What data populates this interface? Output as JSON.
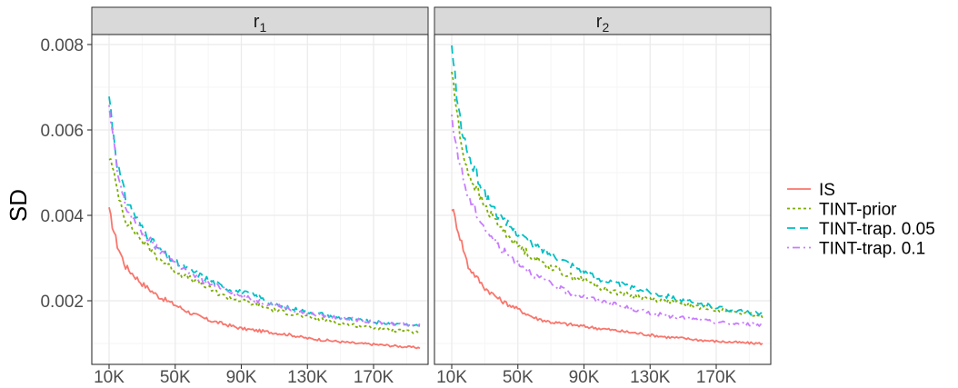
{
  "chart_data": {
    "type": "line",
    "ylabel": "SD",
    "xlabel": "",
    "x_ticks": [
      10000,
      50000,
      90000,
      130000,
      170000
    ],
    "x_tick_labels": [
      "10K",
      "50K",
      "90K",
      "130K",
      "170K"
    ],
    "y_ticks": [
      0.002,
      0.004,
      0.006,
      0.008
    ],
    "y_tick_labels": [
      "0.002",
      "0.004",
      "0.006",
      "0.008"
    ],
    "xlim": [
      10000,
      200000
    ],
    "ylim": [
      0.0009,
      0.0079
    ],
    "grid": true,
    "legend_position": "right",
    "panels": [
      {
        "strip": "r",
        "strip_sub": "1",
        "series": [
          {
            "name": "IS",
            "color": "#F8766D",
            "dash": "solid",
            "points": [
              [
                10000,
                0.0041
              ],
              [
                15000,
                0.0033
              ],
              [
                20000,
                0.0028
              ],
              [
                30000,
                0.0024
              ],
              [
                40000,
                0.0021
              ],
              [
                50000,
                0.0019
              ],
              [
                60000,
                0.0017
              ],
              [
                70000,
                0.00155
              ],
              [
                80000,
                0.00145
              ],
              [
                90000,
                0.00135
              ],
              [
                100000,
                0.0013
              ],
              [
                110000,
                0.00125
              ],
              [
                120000,
                0.0012
              ],
              [
                130000,
                0.00112
              ],
              [
                140000,
                0.00108
              ],
              [
                150000,
                0.00104
              ],
              [
                160000,
                0.001
              ],
              [
                170000,
                0.00098
              ],
              [
                180000,
                0.00095
              ],
              [
                190000,
                0.00092
              ],
              [
                198000,
                0.0009
              ]
            ]
          },
          {
            "name": "TINT-prior",
            "color": "#7CAE00",
            "dash": "short",
            "points": [
              [
                10000,
                0.0054
              ],
              [
                15000,
                0.0046
              ],
              [
                20000,
                0.0039
              ],
              [
                30000,
                0.0034
              ],
              [
                40000,
                0.003
              ],
              [
                50000,
                0.0027
              ],
              [
                60000,
                0.0025
              ],
              [
                70000,
                0.0023
              ],
              [
                80000,
                0.0021
              ],
              [
                90000,
                0.002
              ],
              [
                100000,
                0.0019
              ],
              [
                110000,
                0.00178
              ],
              [
                120000,
                0.0017
              ],
              [
                130000,
                0.00162
              ],
              [
                140000,
                0.00155
              ],
              [
                150000,
                0.00148
              ],
              [
                160000,
                0.00142
              ],
              [
                170000,
                0.00137
              ],
              [
                180000,
                0.00132
              ],
              [
                190000,
                0.00128
              ],
              [
                198000,
                0.00125
              ]
            ]
          },
          {
            "name": "TINT-trap. 0.05",
            "color": "#00BFC4",
            "dash": "long",
            "points": [
              [
                10000,
                0.0068
              ],
              [
                15000,
                0.0052
              ],
              [
                20000,
                0.0044
              ],
              [
                30000,
                0.0037
              ],
              [
                40000,
                0.0032
              ],
              [
                50000,
                0.0029
              ],
              [
                60000,
                0.0027
              ],
              [
                70000,
                0.0025
              ],
              [
                80000,
                0.0023
              ],
              [
                90000,
                0.0022
              ],
              [
                100000,
                0.0021
              ],
              [
                110000,
                0.0019
              ],
              [
                120000,
                0.00182
              ],
              [
                130000,
                0.00175
              ],
              [
                140000,
                0.00168
              ],
              [
                150000,
                0.0016
              ],
              [
                160000,
                0.00155
              ],
              [
                170000,
                0.0015
              ],
              [
                180000,
                0.00147
              ],
              [
                190000,
                0.00145
              ],
              [
                198000,
                0.00142
              ]
            ]
          },
          {
            "name": "TINT-trap. 0.1",
            "color": "#C77CFF",
            "dash": "dashdot",
            "points": [
              [
                10000,
                0.0065
              ],
              [
                15000,
                0.005
              ],
              [
                20000,
                0.0042
              ],
              [
                30000,
                0.0036
              ],
              [
                40000,
                0.0032
              ],
              [
                50000,
                0.0029
              ],
              [
                60000,
                0.0026
              ],
              [
                70000,
                0.0024
              ],
              [
                80000,
                0.0023
              ],
              [
                90000,
                0.0021
              ],
              [
                100000,
                0.002
              ],
              [
                110000,
                0.0019
              ],
              [
                120000,
                0.0018
              ],
              [
                130000,
                0.0017
              ],
              [
                140000,
                0.00165
              ],
              [
                150000,
                0.0016
              ],
              [
                160000,
                0.00155
              ],
              [
                170000,
                0.0015
              ],
              [
                180000,
                0.00147
              ],
              [
                190000,
                0.00145
              ],
              [
                198000,
                0.00143
              ]
            ]
          }
        ]
      },
      {
        "strip": "r",
        "strip_sub": "2",
        "series": [
          {
            "name": "IS",
            "color": "#F8766D",
            "dash": "solid",
            "points": [
              [
                10000,
                0.0042
              ],
              [
                15000,
                0.0035
              ],
              [
                20000,
                0.0028
              ],
              [
                30000,
                0.0023
              ],
              [
                40000,
                0.002
              ],
              [
                50000,
                0.0018
              ],
              [
                60000,
                0.0016
              ],
              [
                70000,
                0.0015
              ],
              [
                80000,
                0.00145
              ],
              [
                90000,
                0.0014
              ],
              [
                100000,
                0.00135
              ],
              [
                110000,
                0.0013
              ],
              [
                120000,
                0.00125
              ],
              [
                130000,
                0.0012
              ],
              [
                140000,
                0.00115
              ],
              [
                150000,
                0.00112
              ],
              [
                160000,
                0.00108
              ],
              [
                170000,
                0.00105
              ],
              [
                180000,
                0.00103
              ],
              [
                190000,
                0.00101
              ],
              [
                198000,
                0.001
              ]
            ]
          },
          {
            "name": "TINT-prior",
            "color": "#7CAE00",
            "dash": "short",
            "points": [
              [
                10000,
                0.0074
              ],
              [
                15000,
                0.0058
              ],
              [
                20000,
                0.005
              ],
              [
                30000,
                0.0042
              ],
              [
                40000,
                0.0037
              ],
              [
                50000,
                0.0033
              ],
              [
                60000,
                0.003
              ],
              [
                70000,
                0.0028
              ],
              [
                80000,
                0.0026
              ],
              [
                90000,
                0.0025
              ],
              [
                100000,
                0.0023
              ],
              [
                110000,
                0.0022
              ],
              [
                120000,
                0.00212
              ],
              [
                130000,
                0.00205
              ],
              [
                140000,
                0.002
              ],
              [
                150000,
                0.00192
              ],
              [
                160000,
                0.00185
              ],
              [
                170000,
                0.0018
              ],
              [
                180000,
                0.00175
              ],
              [
                190000,
                0.00168
              ],
              [
                198000,
                0.00163
              ]
            ]
          },
          {
            "name": "TINT-trap. 0.05",
            "color": "#00BFC4",
            "dash": "long",
            "points": [
              [
                10000,
                0.0079
              ],
              [
                15000,
                0.0062
              ],
              [
                20000,
                0.0054
              ],
              [
                30000,
                0.0045
              ],
              [
                40000,
                0.0039
              ],
              [
                50000,
                0.0036
              ],
              [
                60000,
                0.0033
              ],
              [
                70000,
                0.0031
              ],
              [
                80000,
                0.0029
              ],
              [
                90000,
                0.0027
              ],
              [
                100000,
                0.0025
              ],
              [
                110000,
                0.0024
              ],
              [
                120000,
                0.0023
              ],
              [
                130000,
                0.0022
              ],
              [
                140000,
                0.00212
              ],
              [
                150000,
                0.002
              ],
              [
                160000,
                0.00192
              ],
              [
                170000,
                0.00185
              ],
              [
                180000,
                0.00178
              ],
              [
                190000,
                0.00172
              ],
              [
                198000,
                0.00168
              ]
            ]
          },
          {
            "name": "TINT-trap. 0.1",
            "color": "#C77CFF",
            "dash": "dashdot",
            "points": [
              [
                10000,
                0.0062
              ],
              [
                15000,
                0.0052
              ],
              [
                20000,
                0.0044
              ],
              [
                30000,
                0.0037
              ],
              [
                40000,
                0.0032
              ],
              [
                50000,
                0.0029
              ],
              [
                60000,
                0.0026
              ],
              [
                70000,
                0.0024
              ],
              [
                80000,
                0.0022
              ],
              [
                90000,
                0.0021
              ],
              [
                100000,
                0.002
              ],
              [
                110000,
                0.0019
              ],
              [
                120000,
                0.0018
              ],
              [
                130000,
                0.00172
              ],
              [
                140000,
                0.00165
              ],
              [
                150000,
                0.0016
              ],
              [
                160000,
                0.00155
              ],
              [
                170000,
                0.0015
              ],
              [
                180000,
                0.00147
              ],
              [
                190000,
                0.00145
              ],
              [
                198000,
                0.00143
              ]
            ]
          }
        ]
      }
    ],
    "legend": [
      {
        "name": "IS",
        "color": "#F8766D",
        "dash": "solid"
      },
      {
        "name": "TINT-prior",
        "color": "#7CAE00",
        "dash": "short"
      },
      {
        "name": "TINT-trap. 0.05",
        "color": "#00BFC4",
        "dash": "long"
      },
      {
        "name": "TINT-trap. 0.1",
        "color": "#C77CFF",
        "dash": "dashdot"
      }
    ],
    "colors": {
      "panel_background": "#ffffff",
      "panel_border": "#333333",
      "strip_background": "#d9d9d9",
      "grid_major": "#ebebeb",
      "grid_minor": "#f5f5f5"
    }
  }
}
